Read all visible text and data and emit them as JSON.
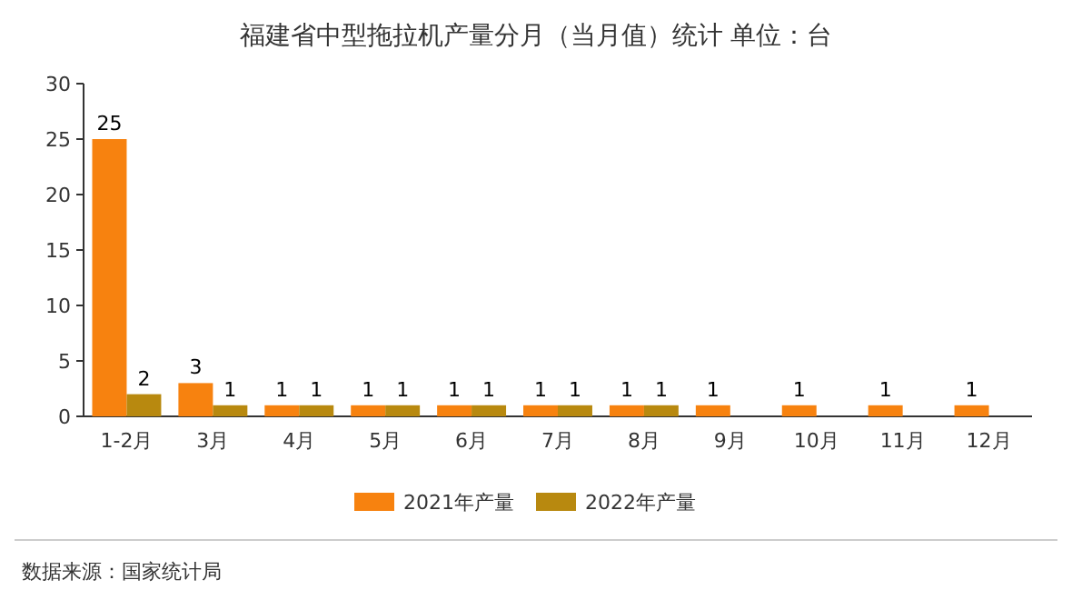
{
  "chart_data": {
    "type": "bar",
    "title": "福建省中型拖拉机产量分月（当月值）统计  单位：台",
    "categories": [
      "1-2月",
      "3月",
      "4月",
      "5月",
      "6月",
      "7月",
      "8月",
      "9月",
      "10月",
      "11月",
      "12月"
    ],
    "series": [
      {
        "name": "2021年产量",
        "color": "#f7820f",
        "values": [
          25,
          3,
          1,
          1,
          1,
          1,
          1,
          1,
          1,
          1,
          1
        ]
      },
      {
        "name": "2022年产量",
        "color": "#b8890f",
        "values": [
          2,
          1,
          1,
          1,
          1,
          1,
          1,
          null,
          null,
          null,
          null
        ]
      }
    ],
    "ylim": [
      0,
      30
    ],
    "yticks": [
      0,
      5,
      10,
      15,
      20,
      25,
      30
    ],
    "data_labels": true,
    "legend": "bottom",
    "annotations": [
      "数据来源：国家统计局"
    ]
  }
}
